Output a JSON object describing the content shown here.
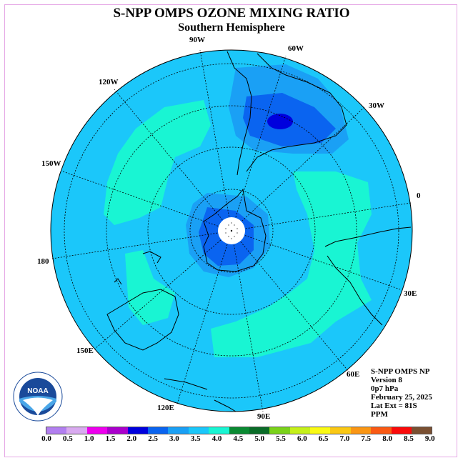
{
  "title": "S-NPP OMPS OZONE MIXING RATIO",
  "subtitle": "Southern Hemisphere",
  "longitude_labels": [
    "90W",
    "60W",
    "30W",
    "0",
    "30E",
    "60E",
    "90E",
    "120E",
    "150E",
    "180",
    "150W",
    "120W"
  ],
  "info": {
    "instrument": "S-NPP OMPS NP",
    "version": "Version 8",
    "level": "0p7 hPa",
    "date": "February 25, 2025",
    "lat_ext": "Lat Ext = 81S",
    "units": "PPM"
  },
  "logo_text": "NOAA",
  "colorbar": {
    "colors": [
      "#b27ff0",
      "#d9aaf0",
      "#ee00ee",
      "#aa00cc",
      "#0000dd",
      "#0a64f0",
      "#1aa0f5",
      "#1bc7fa",
      "#19f5d3",
      "#0a8a32",
      "#0a6c28",
      "#7ad21a",
      "#c5f01a",
      "#fafa14",
      "#fac814",
      "#fa9614",
      "#fa5a14",
      "#fa0a0a",
      "#7a5032"
    ],
    "ticks": [
      "0.0",
      "0.5",
      "1.0",
      "1.5",
      "2.0",
      "2.5",
      "3.0",
      "3.5",
      "4.0",
      "4.5",
      "5.0",
      "5.5",
      "6.0",
      "6.5",
      "7.0",
      "7.5",
      "8.0",
      "8.5",
      "9.0"
    ]
  }
}
